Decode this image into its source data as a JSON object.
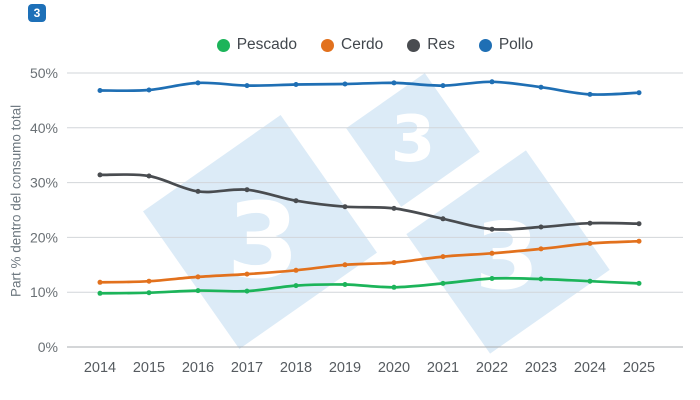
{
  "logo": {
    "glyph": "3",
    "bg_color": "#1d70b8"
  },
  "watermark": {
    "digits": [
      "3",
      "3",
      "3"
    ],
    "fill": "#dcebf7",
    "digit_color": "#ffffff"
  },
  "chart_data": {
    "type": "line",
    "title": "",
    "xlabel": "",
    "ylabel": "Part % dentro del consumo total",
    "x": [
      "2014",
      "2015",
      "2016",
      "2017",
      "2018",
      "2019",
      "2020",
      "2021",
      "2022",
      "2023",
      "2024",
      "2025"
    ],
    "series": [
      {
        "name": "Pescado",
        "color": "#1cb45a",
        "values": [
          9.8,
          9.9,
          10.3,
          10.2,
          11.2,
          11.4,
          10.9,
          11.6,
          12.5,
          12.4,
          12.0,
          11.6
        ]
      },
      {
        "name": "Cerdo",
        "color": "#e2711d",
        "values": [
          11.8,
          12.0,
          12.8,
          13.3,
          14.0,
          15.0,
          15.4,
          16.5,
          17.1,
          17.9,
          18.9,
          19.3
        ]
      },
      {
        "name": "Res",
        "color": "#494c50",
        "values": [
          31.4,
          31.2,
          28.4,
          28.7,
          26.7,
          25.6,
          25.3,
          23.4,
          21.5,
          21.9,
          22.6,
          22.5
        ]
      },
      {
        "name": "Pollo",
        "color": "#1f6fb4",
        "values": [
          46.8,
          46.9,
          48.2,
          47.7,
          47.9,
          48.0,
          48.2,
          47.7,
          48.4,
          47.4,
          46.1,
          46.4
        ]
      }
    ],
    "ylim": [
      0,
      50
    ],
    "yticks": [
      {
        "value": 0,
        "label": "0%"
      },
      {
        "value": 10,
        "label": "10%"
      },
      {
        "value": 20,
        "label": "20%"
      },
      {
        "value": 30,
        "label": "30%"
      },
      {
        "value": 40,
        "label": "40%"
      },
      {
        "value": 50,
        "label": "50%"
      }
    ],
    "grid": true,
    "legend_position": "top"
  },
  "colors": {
    "gridline": "#d2d6da",
    "axis_line": "#a9adb0",
    "tick_text": "#6a7075",
    "legend_text": "#41474d"
  }
}
